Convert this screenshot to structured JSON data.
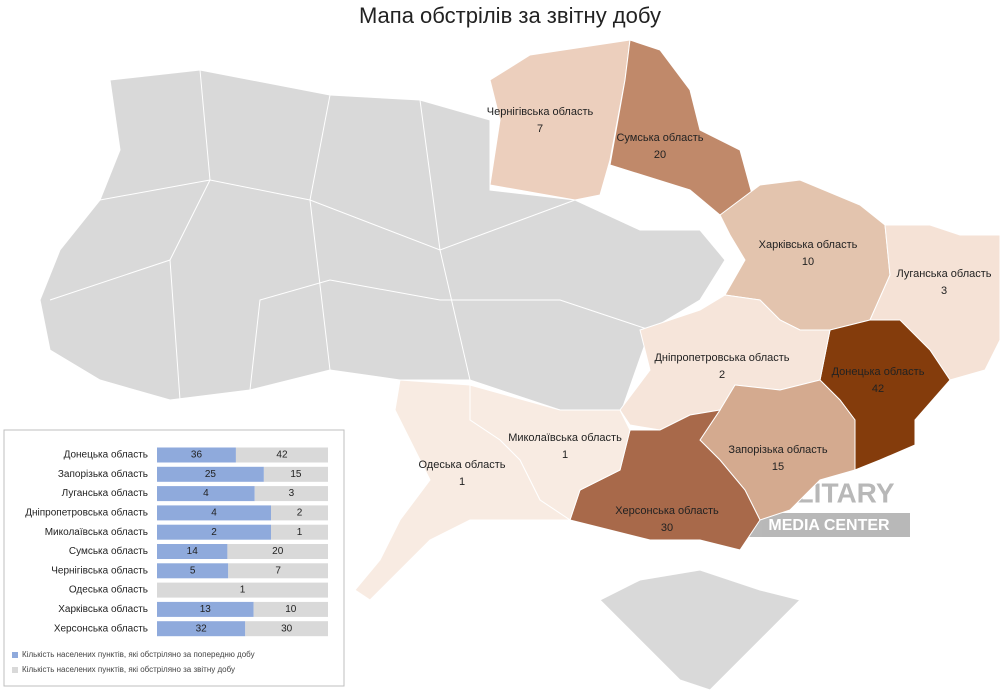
{
  "title": "Мапа обстрілів за звітну добу",
  "map": {
    "regions": [
      {
        "name": "Чернігівська область",
        "value": 7,
        "color": "#eccfbd"
      },
      {
        "name": "Сумська область",
        "value": 20,
        "color": "#c0896a"
      },
      {
        "name": "Харківська область",
        "value": 10,
        "color": "#e3c4ae"
      },
      {
        "name": "Луганська область",
        "value": 3,
        "color": "#f5e2d6"
      },
      {
        "name": "Донецька область",
        "value": 42,
        "color": "#843c0c"
      },
      {
        "name": "Дніпропетровська область",
        "value": 2,
        "color": "#f6e5da"
      },
      {
        "name": "Запорізька область",
        "value": 15,
        "color": "#d4aa8f"
      },
      {
        "name": "Херсонська область",
        "value": 30,
        "color": "#a8694a"
      },
      {
        "name": "Миколаївська область",
        "value": 1,
        "color": "#f8ebe2"
      },
      {
        "name": "Одеська область",
        "value": 1,
        "color": "#f8ebe2"
      }
    ]
  },
  "chart_data": {
    "type": "bar",
    "orientation": "horizontal",
    "stacked": "percent",
    "categories": [
      "Донецька область",
      "Запорізька область",
      "Луганська область",
      "Дніпропетровська область",
      "Миколаївська область",
      "Сумська область",
      "Чернігівська область",
      "Одеська область",
      "Харківська область",
      "Херсонська область"
    ],
    "series": [
      {
        "name": "Кількість населених пунктів, які обстріляно за попередню добу",
        "color": "#8faadc",
        "values": [
          36,
          25,
          4,
          4,
          2,
          14,
          5,
          null,
          13,
          32
        ]
      },
      {
        "name": "Кількість населених пунктів, які обстріляно за звітну добу",
        "color": "#d9d9d9",
        "values": [
          42,
          15,
          3,
          2,
          1,
          20,
          7,
          1,
          10,
          30
        ]
      }
    ]
  },
  "watermark": [
    "MILITARY",
    "MEDIA CENTER"
  ]
}
